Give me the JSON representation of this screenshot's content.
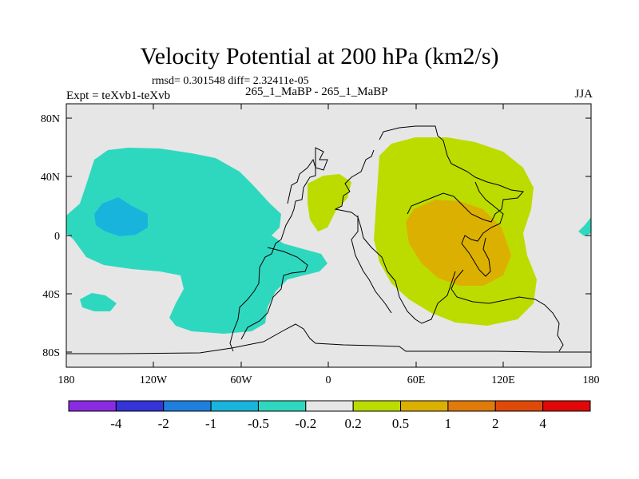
{
  "title": "Velocity Potential at 200 hPa (km2/s)",
  "stats_line": "rmsd= 0.301548 diff= 2.32411e-05",
  "left_label": "Expt = teXvb1-teXvb",
  "center_label": "265_1_MaBP - 265_1_MaBP",
  "right_label": "JJA",
  "map": {
    "background_color": "#e6e6e6",
    "y_tick_labels": [
      "80N",
      "40N",
      "0",
      "40S",
      "80S"
    ],
    "x_tick_labels": [
      "180",
      "120W",
      "60W",
      "0",
      "60E",
      "120E",
      "180"
    ]
  },
  "colorbar": {
    "colors": [
      "#8a2be2",
      "#3434d8",
      "#1f7fdc",
      "#18b4dc",
      "#2ed8bf",
      "#e6e6e6",
      "#bcdc00",
      "#dcb000",
      "#e07a0a",
      "#e04a08",
      "#e00808"
    ],
    "labels": [
      "-4",
      "-2",
      "-1",
      "-0.5",
      "-0.2",
      "0.2",
      "0.5",
      "1",
      "2",
      "4"
    ]
  },
  "chart_data": {
    "type": "map",
    "title": "Velocity Potential at 200 hPa (km2/s)",
    "variable": "Velocity Potential",
    "level": "200 hPa",
    "units": "km2/s",
    "season": "JJA",
    "rmsd": 0.301548,
    "diff": 2.32411e-05,
    "lon_range": [
      -180,
      180
    ],
    "lat_range": [
      -90,
      90
    ],
    "contour_levels": [
      -4,
      -2,
      -1,
      -0.5,
      -0.2,
      0.2,
      0.5,
      1,
      2,
      4
    ],
    "regions": [
      {
        "name": "Pacific / Americas negative anomaly",
        "range": [
          -0.5,
          -0.2
        ],
        "lon_range": [
          -180,
          -10
        ],
        "lat_range": [
          -65,
          55
        ]
      },
      {
        "name": "Eastern Pacific minimum",
        "range": [
          -1,
          -0.5
        ],
        "lon_range": [
          -160,
          -130
        ],
        "lat_range": [
          5,
          25
        ]
      },
      {
        "name": "South Pacific small negative cell",
        "range": [
          -0.5,
          -0.2
        ],
        "lon_range": [
          -170,
          -145
        ],
        "lat_range": [
          -48,
          -38
        ]
      },
      {
        "name": "North Africa positive cell",
        "range": [
          0.2,
          0.5
        ],
        "lon_range": [
          -15,
          15
        ],
        "lat_range": [
          0,
          40
        ]
      },
      {
        "name": "Asia / Indian Ocean positive anomaly",
        "range": [
          0.2,
          0.5
        ],
        "lon_range": [
          35,
          150
        ],
        "lat_range": [
          -60,
          65
        ]
      },
      {
        "name": "Maritime Continent maximum",
        "range": [
          0.5,
          1
        ],
        "lon_range": [
          55,
          125
        ],
        "lat_range": [
          -35,
          20
        ]
      },
      {
        "name": "Dateline small negative cell",
        "range": [
          -0.5,
          -0.2
        ],
        "lon_range": [
          170,
          180
        ],
        "lat_range": [
          -2,
          12
        ]
      }
    ]
  }
}
